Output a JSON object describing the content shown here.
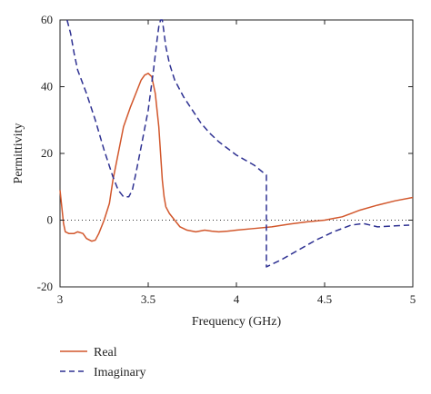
{
  "chart_data": {
    "type": "line",
    "xlabel": "Frequency (GHz)",
    "ylabel": "Permittivity",
    "xlim": [
      3,
      5
    ],
    "ylim": [
      -20,
      60
    ],
    "xticks": [
      3,
      3.5,
      4,
      4.5,
      5
    ],
    "yticks": [
      -20,
      0,
      20,
      40,
      60
    ],
    "xtick_labels": [
      "3",
      "3.5",
      "4",
      "4.5",
      "5"
    ],
    "ytick_labels": [
      "-20",
      "0",
      "20",
      "40",
      "60"
    ],
    "grid": false,
    "legend_position": "bottom-left, below the plot",
    "reference_line": {
      "y": 0,
      "style": "dotted",
      "color": "#333333"
    },
    "series": [
      {
        "name": "Real",
        "style": "solid",
        "color": "#d2572c",
        "x": [
          3.0,
          3.01,
          3.02,
          3.03,
          3.05,
          3.08,
          3.1,
          3.13,
          3.15,
          3.18,
          3.2,
          3.22,
          3.25,
          3.28,
          3.3,
          3.33,
          3.36,
          3.4,
          3.43,
          3.46,
          3.48,
          3.5,
          3.52,
          3.54,
          3.56,
          3.58,
          3.59,
          3.6,
          3.62,
          3.65,
          3.68,
          3.72,
          3.77,
          3.82,
          3.86,
          3.9,
          3.95,
          4.0,
          4.1,
          4.2,
          4.3,
          4.4,
          4.5,
          4.55,
          4.6,
          4.65,
          4.7,
          4.8,
          4.9,
          5.0
        ],
        "y": [
          9,
          4,
          -1,
          -3.5,
          -4,
          -4,
          -3.5,
          -4,
          -5.5,
          -6.3,
          -6,
          -4,
          0,
          5,
          12,
          20,
          28,
          34,
          38,
          42,
          43.5,
          44,
          43,
          38,
          28,
          12,
          7,
          4,
          2,
          0,
          -2,
          -3,
          -3.5,
          -3,
          -3.3,
          -3.5,
          -3.3,
          -3,
          -2.5,
          -2,
          -1.2,
          -0.5,
          0,
          0.5,
          1,
          2,
          3,
          4.5,
          5.8,
          6.8
        ]
      },
      {
        "name": "Imaginary",
        "style": "dashed",
        "color": "#2e3192",
        "x": [
          3.04,
          3.06,
          3.08,
          3.1,
          3.15,
          3.2,
          3.25,
          3.3,
          3.33,
          3.36,
          3.39,
          3.41,
          3.43,
          3.46,
          3.5,
          3.53,
          3.55,
          3.56,
          3.57,
          3.58,
          3.6,
          3.62,
          3.65,
          3.7,
          3.75,
          3.8,
          3.85,
          3.9,
          3.95,
          4.0,
          4.1,
          4.17,
          4.17,
          4.25,
          4.35,
          4.45,
          4.55,
          4.65,
          4.72,
          4.8,
          4.9,
          4.98
        ],
        "y": [
          60,
          56,
          50,
          45,
          38,
          30,
          21,
          13,
          9,
          7,
          7,
          9,
          14,
          22,
          33,
          45,
          54,
          58,
          60,
          60,
          52,
          47,
          42,
          37,
          33,
          29,
          26,
          23.5,
          21.5,
          19.5,
          16.5,
          13.5,
          -14,
          -12,
          -9,
          -6,
          -3.5,
          -1.5,
          -1,
          -2,
          -1.7,
          -1.5
        ]
      }
    ]
  }
}
